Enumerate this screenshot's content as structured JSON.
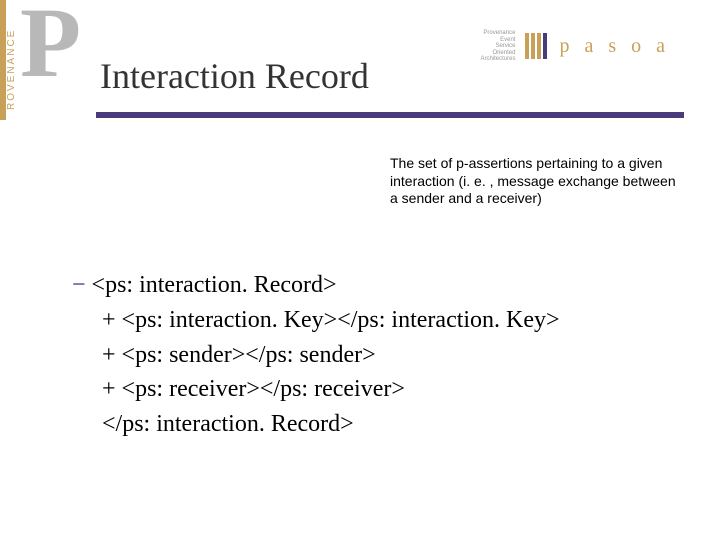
{
  "sidebar": {
    "vertical_label": "ROVENANCE",
    "big_letter": "P",
    "amber_color": "#c8a058",
    "grey_color": "#b8b8b8"
  },
  "top_right": {
    "small_lines": [
      "Provenance",
      "Event",
      "Service",
      "Oriented",
      "Architectures"
    ],
    "label": "p a s o a",
    "bar_colors": [
      "#c8a058",
      "#c8a058",
      "#c8a058",
      "#4a3b7c"
    ]
  },
  "title": "Interaction Record",
  "hline_color": "#4a3b7c",
  "description": "The set of p-assertions pertaining to a given interaction (i. e. , message exchange between a sender and a receiver)",
  "xml": {
    "line1_prefix": "−",
    "line1": " <ps: interaction. Record>",
    "line2": "+ <ps: interaction. Key></ps: interaction. Key>",
    "line3": "+ <ps: sender></ps: sender>",
    "line4": "+ <ps: receiver></ps: receiver>",
    "line5": "</ps: interaction. Record>"
  },
  "fonts": {
    "title_size": 36,
    "body_size": 14,
    "xml_size": 24
  }
}
